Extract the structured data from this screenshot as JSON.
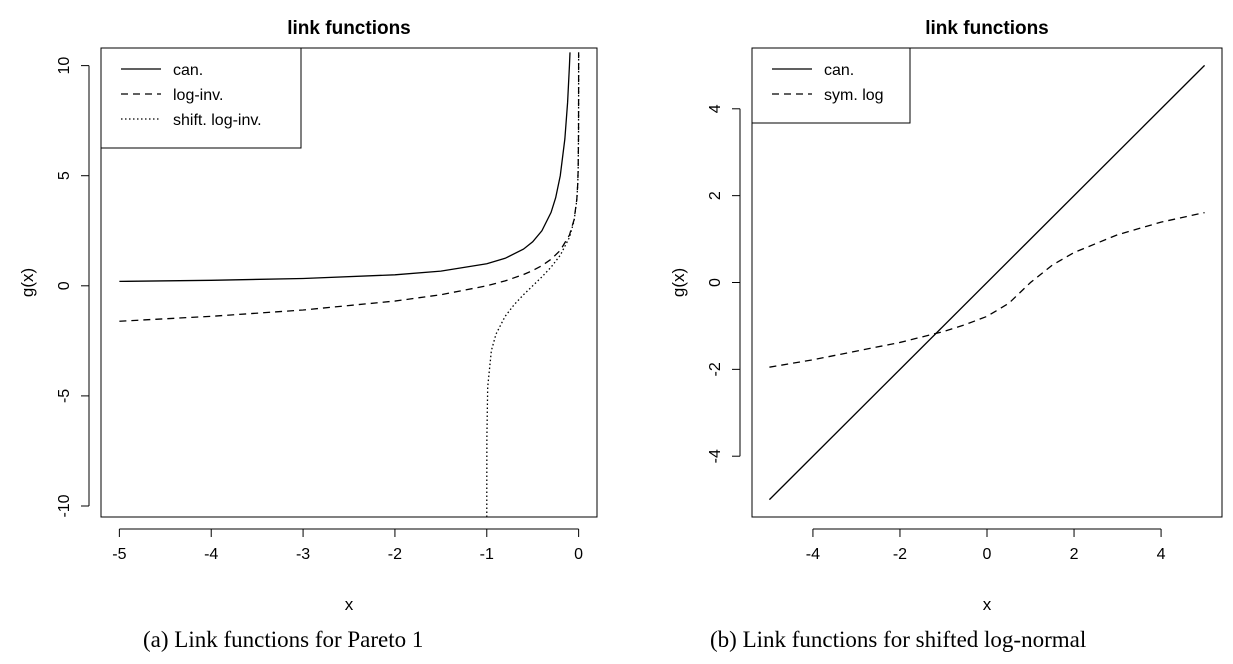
{
  "chart_data": [
    {
      "type": "line",
      "title": "link functions",
      "xlabel": "x",
      "ylabel": "g(x)",
      "caption": "(a) Link functions for Pareto 1",
      "xlim": [
        -5.2,
        0.2
      ],
      "ylim": [
        -10.5,
        10.8
      ],
      "xticks": [
        -5,
        -4,
        -3,
        -2,
        -1,
        0
      ],
      "yticks": [
        -10,
        -5,
        0,
        5,
        10
      ],
      "legend": [
        "can.",
        "log-inv.",
        "shift. log-inv."
      ],
      "legend_position": "top-left",
      "series": [
        {
          "name": "can.",
          "dash": "solid",
          "x": [
            -5,
            -4,
            -3,
            -2,
            -1.5,
            -1,
            -0.8,
            -0.6,
            -0.5,
            -0.4,
            -0.3,
            -0.25,
            -0.2,
            -0.15,
            -0.12,
            -0.1,
            -0.094
          ],
          "y": [
            0.2,
            0.25,
            0.333,
            0.5,
            0.667,
            1.0,
            1.25,
            1.667,
            2.0,
            2.5,
            3.333,
            4.0,
            5.0,
            6.667,
            8.333,
            10.0,
            10.6
          ]
        },
        {
          "name": "log-inv.",
          "dash": "dashed",
          "x": [
            -5,
            -4,
            -3,
            -2,
            -1.5,
            -1,
            -0.8,
            -0.6,
            -0.5,
            -0.4,
            -0.3,
            -0.2,
            -0.1,
            -0.05,
            -0.02,
            -0.01,
            -0.005,
            -0.001,
            -0.0001,
            -2e-05
          ],
          "y": [
            -1.609,
            -1.386,
            -1.099,
            -0.693,
            -0.405,
            0.0,
            0.223,
            0.511,
            0.693,
            0.916,
            1.204,
            1.609,
            2.303,
            2.996,
            3.912,
            4.605,
            5.298,
            6.908,
            9.21,
            10.6
          ]
        },
        {
          "name": "shift. log-inv.",
          "dash": "dotted",
          "x": [
            -0.99998,
            -0.9999,
            -0.999,
            -0.99,
            -0.95,
            -0.9,
            -0.8,
            -0.7,
            -0.6,
            -0.5,
            -0.4,
            -0.3,
            -0.2,
            -0.1,
            -0.05,
            -0.02,
            -0.01,
            -0.005,
            -0.001,
            -0.0001,
            -2e-05
          ],
          "y": [
            -10.5,
            -9.21,
            -6.907,
            -4.595,
            -2.944,
            -2.197,
            -1.386,
            -0.847,
            -0.405,
            0.0,
            0.405,
            0.847,
            1.386,
            2.197,
            2.944,
            3.892,
            4.595,
            5.293,
            6.907,
            9.21,
            10.6
          ]
        }
      ]
    },
    {
      "type": "line",
      "title": "link functions",
      "xlabel": "x",
      "ylabel": "g(x)",
      "caption": "(b) Link functions for shifted log-normal",
      "xlim": [
        -5.4,
        5.4
      ],
      "ylim": [
        -5.4,
        5.4
      ],
      "xticks": [
        -4,
        -2,
        0,
        2,
        4
      ],
      "yticks": [
        -4,
        -2,
        0,
        2,
        4
      ],
      "legend": [
        "can.",
        "sym. log"
      ],
      "legend_position": "top-left",
      "series": [
        {
          "name": "can.",
          "dash": "solid",
          "x": [
            -5,
            5
          ],
          "y": [
            -5,
            5
          ]
        },
        {
          "name": "sym. log",
          "dash": "dashed",
          "x": [
            -5,
            -4,
            -3,
            -2,
            -1,
            -0.5,
            0,
            0.5,
            1,
            1.5,
            2,
            3,
            4,
            5
          ],
          "y": [
            -1.95,
            -1.78,
            -1.58,
            -1.38,
            -1.13,
            -0.97,
            -0.78,
            -0.48,
            0.0,
            0.4,
            0.69,
            1.1,
            1.39,
            1.61
          ]
        }
      ]
    }
  ]
}
